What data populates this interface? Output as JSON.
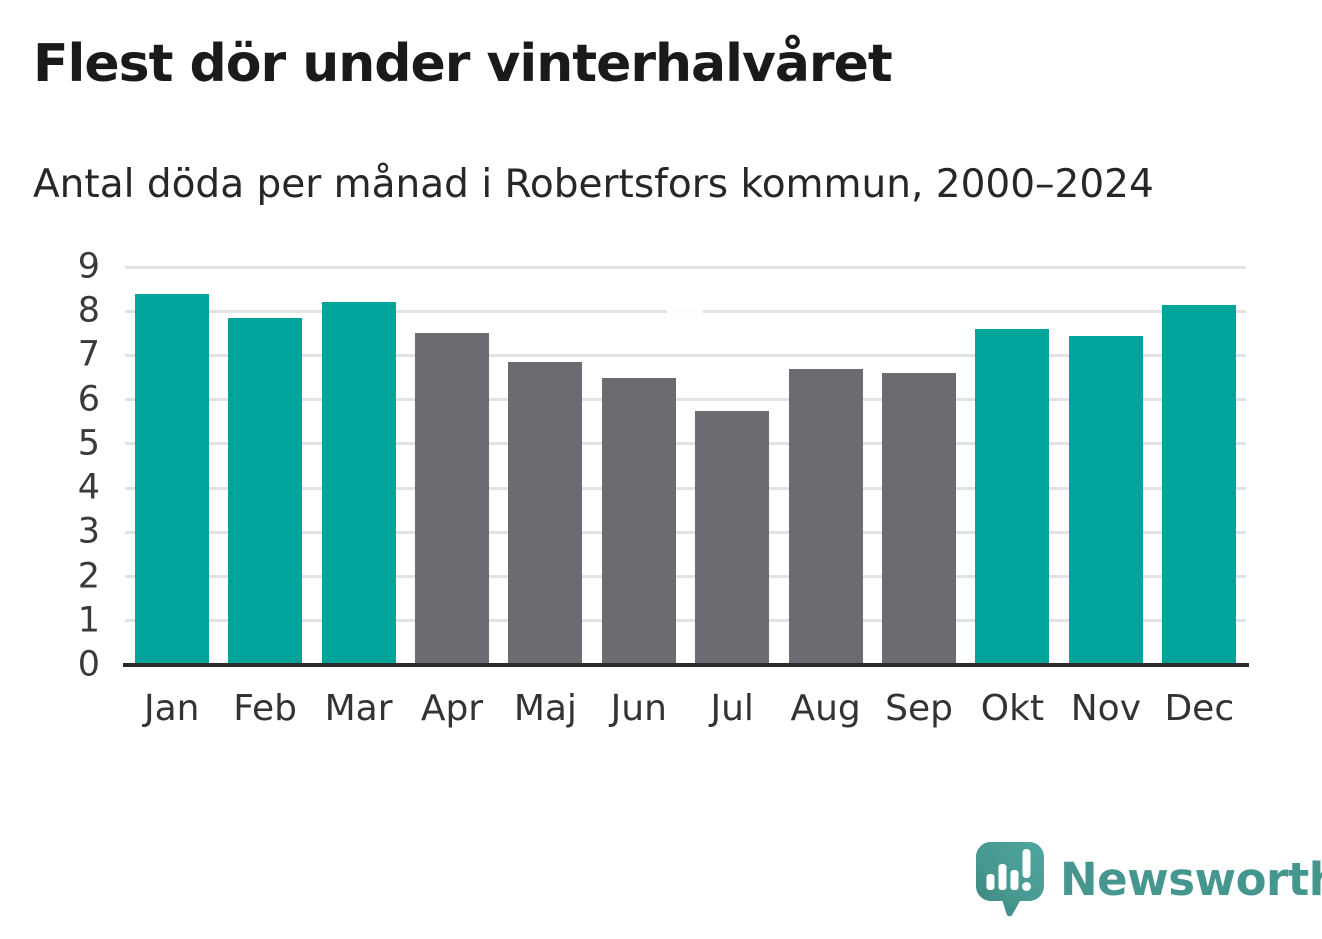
{
  "chart_data": {
    "type": "bar",
    "title": "Flest dör under vinterhalvåret",
    "subtitle": "Antal döda per månad i Robertsfors kommun, 2000–2024",
    "categories": [
      "Jan",
      "Feb",
      "Mar",
      "Apr",
      "Maj",
      "Jun",
      "Jul",
      "Aug",
      "Sep",
      "Okt",
      "Nov",
      "Dec"
    ],
    "values": [
      8.4,
      7.85,
      8.2,
      7.5,
      6.85,
      6.5,
      5.75,
      6.7,
      6.6,
      7.6,
      7.45,
      8.15
    ],
    "bar_colors": [
      "#00a49b",
      "#00a49b",
      "#00a49b",
      "#6b6b72",
      "#6b6b72",
      "#6b6b72",
      "#6b6b72",
      "#6b6b72",
      "#6b6b72",
      "#00a49b",
      "#00a49b",
      "#00a49b"
    ],
    "xlabel": "",
    "ylabel": "",
    "ylim": [
      0,
      9
    ],
    "yticks": [
      0,
      1,
      2,
      3,
      4,
      5,
      6,
      7,
      8,
      9
    ],
    "grid": true,
    "legend": "none"
  },
  "colors": {
    "winter_bar": "#00a49b",
    "summer_bar": "#6b6b72",
    "gridline": "#e2e2e2",
    "axis_line": "#2b2b2b",
    "title_text": "#1a1a1a",
    "subtitle_text": "#272727",
    "tick_text": "#3a3a3a",
    "brand": "#45968f"
  },
  "footer": {
    "brand": "Newsworthy",
    "logo_icon": "newsworthy-speech-bubble-chart-icon"
  }
}
